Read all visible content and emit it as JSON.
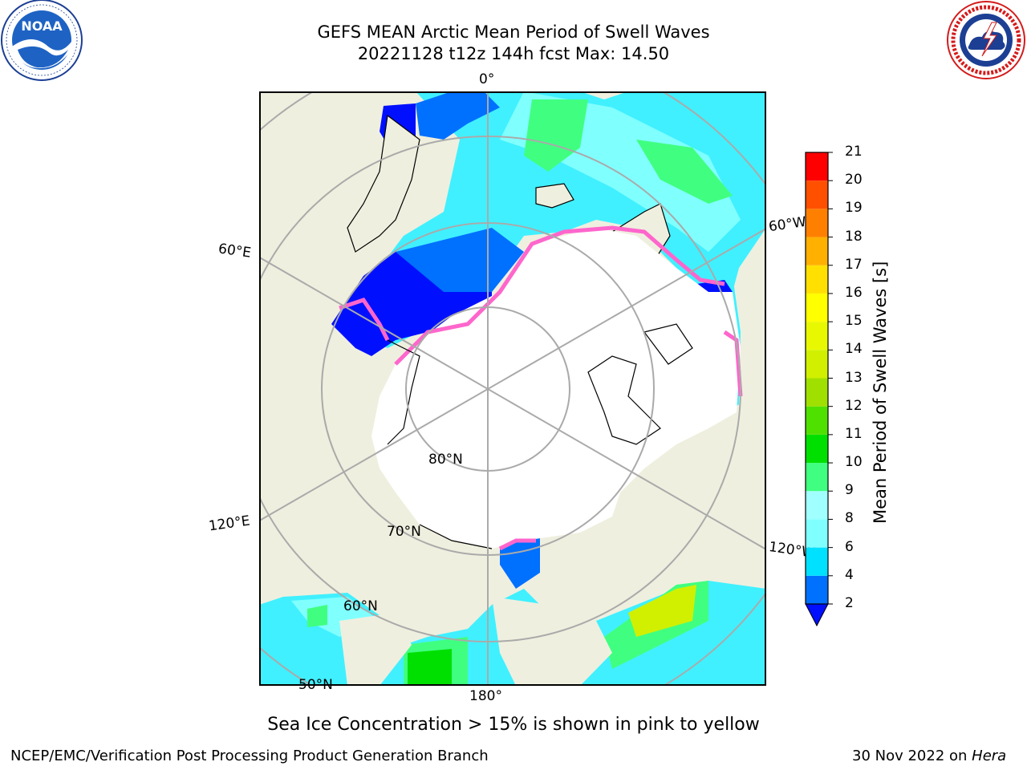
{
  "header": {
    "title_line1": "GEFS MEAN Arctic Mean Period of Swell Waves",
    "title_line2": "20221128 t12z 144h fcst   Max: 14.50"
  },
  "logos": {
    "left": "noaa-logo",
    "right": "national-weather-service-logo"
  },
  "map": {
    "projection": "north-polar-stereographic",
    "lon_labels": {
      "top": "0°",
      "bottom": "180°",
      "left_upper": "60°E",
      "left_lower": "120°E",
      "right_upper": "60°W",
      "right_lower": "120°W"
    },
    "lat_labels": {
      "inner": "80°N",
      "middle": "70°N",
      "outer": "60°N",
      "edge": "50°N"
    },
    "colors": {
      "land": "#efefdf",
      "ice": "#ffffff",
      "ice_edge": "#ff66cc",
      "grid": "#aaaaaa"
    }
  },
  "colorbar": {
    "label": "Mean Period of Swell Waves [s]",
    "ticks": [
      "2",
      "4",
      "6",
      "8",
      "9",
      "10",
      "11",
      "12",
      "13",
      "14",
      "15",
      "16",
      "17",
      "18",
      "19",
      "20",
      "21"
    ],
    "bounds": [
      2,
      3,
      4,
      5,
      6,
      7,
      8,
      9,
      10,
      11,
      12,
      13,
      14,
      15,
      16,
      17,
      18,
      19,
      20,
      21
    ],
    "colors": [
      "#0070ff",
      "#00b0ff",
      "#00e0ff",
      "#40f0ff",
      "#80ffff",
      "#a0ffff",
      "#40ff80",
      "#00e000",
      "#50e000",
      "#a0e000",
      "#d0f000",
      "#e8f800",
      "#ffff00",
      "#ffe000",
      "#ffb000",
      "#ff8000",
      "#ff5000",
      "#ff2000",
      "#ff0000"
    ],
    "under_color": "#0010ff"
  },
  "caption": "Sea Ice Concentration > 15% is shown in pink to yellow",
  "footer": {
    "left": "NCEP/EMC/Verification Post Processing Product Generation Branch",
    "right_date": "30 Nov 2022 on ",
    "right_machine": "Hera"
  }
}
